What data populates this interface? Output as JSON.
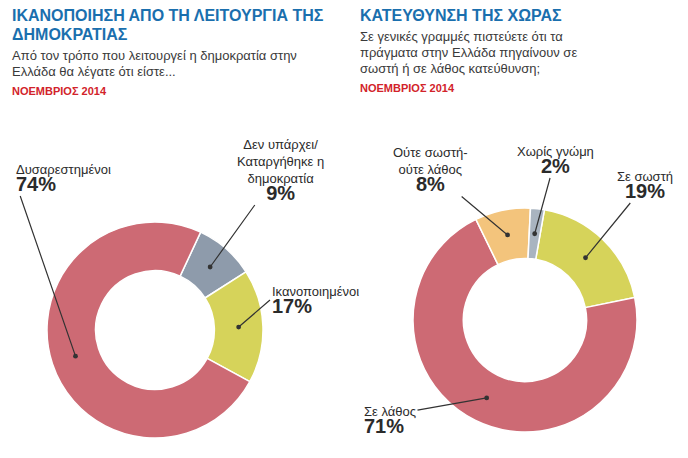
{
  "chart_data": [
    {
      "type": "donut",
      "title": "ΙΚΑΝΟΠΟΙΗΣΗ ΑΠΟ ΤΗ ΛΕΙΤΟΥΡΓΙΑ ΤΗΣ ΔΗΜΟΚΡΑΤΙΑΣ",
      "subtitle": "Από τον τρόπο που λειτουργεί η δημοκρατία στην Ελλάδα θα λέγατε ότι είστε...",
      "annotations": [
        "ΝΟΕΜΒΡΙΟΣ 2014"
      ],
      "categories": [
        "Δεν υπάρχει/ Καταργήθηκε η δημοκρατία",
        "Ικανοποιημένοι",
        "Δυσαρεστημένοι"
      ],
      "values": [
        9,
        17,
        74
      ],
      "value_labels": [
        "9%",
        "17%",
        "74%"
      ],
      "colors": [
        "#8e9bab",
        "#d6d35a",
        "#cd6a74"
      ],
      "data_labels": true
    },
    {
      "type": "donut",
      "title": "ΚΑΤΕΥΘΥΝΣΗ ΤΗΣ ΧΩΡΑΣ",
      "subtitle": "Σε γενικές γραμμές πιστεύετε ότι τα πράγματα στην Ελλάδα πηγαίνουν σε σωστή ή σε λάθος κατεύθυνση;",
      "annotations": [
        "ΝΟΕΜΒΡΙΟΣ 2014"
      ],
      "categories": [
        "Σε σωστή",
        "Σε λάθος",
        "Ούτε σωστή-ούτε λάθος",
        "Χωρίς γνώμη"
      ],
      "values": [
        19,
        71,
        8,
        2
      ],
      "value_labels": [
        "19%",
        "71%",
        "8%",
        "2%"
      ],
      "colors": [
        "#d6d35a",
        "#cd6a74",
        "#f3c47c",
        "#a9b4c0"
      ],
      "data_labels": true
    }
  ]
}
